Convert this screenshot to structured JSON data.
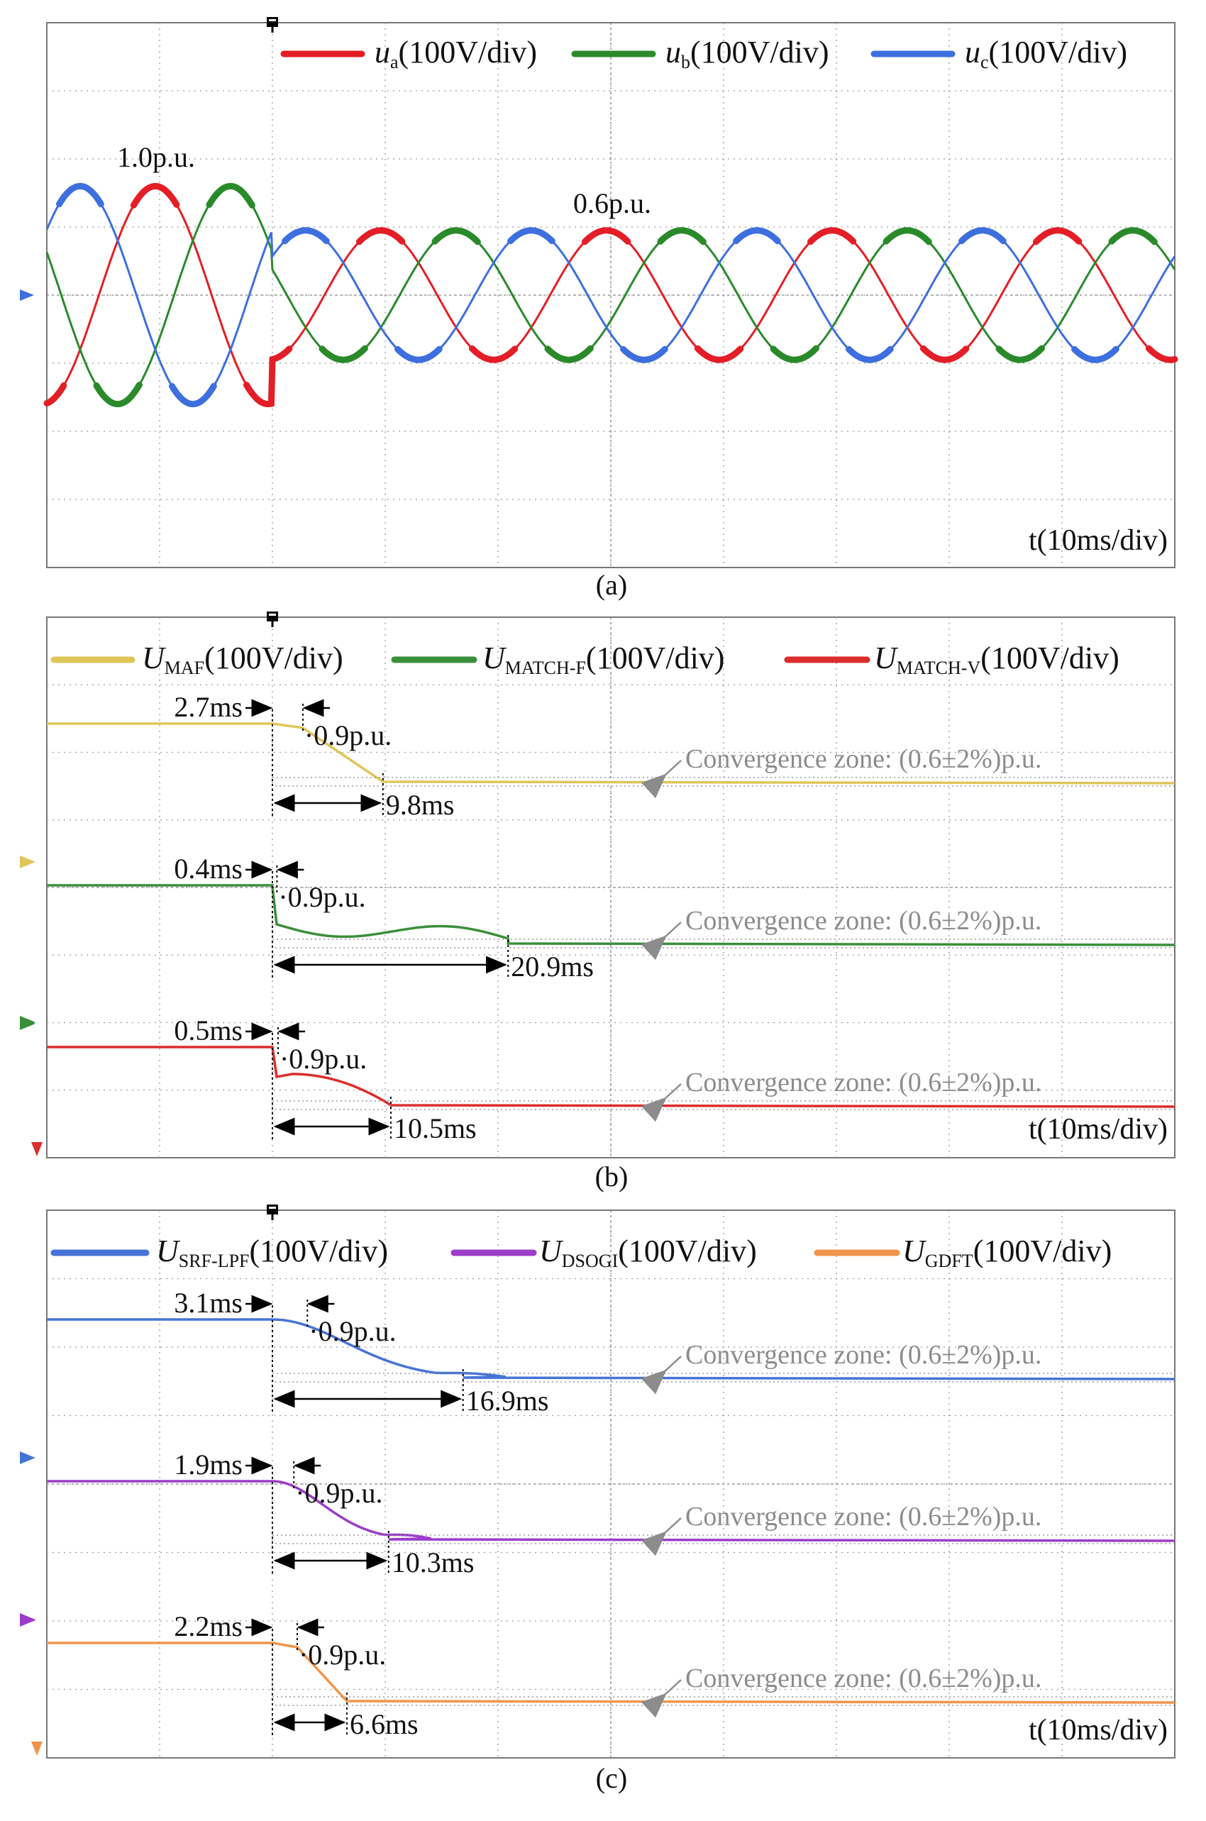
{
  "colors": {
    "ua": "#e41e26",
    "ub": "#2a8a2a",
    "uc": "#3d6fde",
    "maf": "#e0c558",
    "match_f": "#3a8f3a",
    "match_v": "#dd2c2c",
    "srf": "#4674d6",
    "dsogi": "#9b3cc9",
    "gdft": "#f0954b",
    "grid": "#9a9a9a",
    "zone_text": "#8c8c8c"
  },
  "chart_data": [
    {
      "panel": "a",
      "type": "line",
      "caption": "(a)",
      "time_axis_label": "t(10ms/div)",
      "x_unit": "div",
      "x_range": [
        0,
        10
      ],
      "y_range": [
        -4,
        4
      ],
      "trigger_x": 2,
      "legend": [
        {
          "key": "ua",
          "sym": "u",
          "sub": "a",
          "rest": "(100V/div)"
        },
        {
          "key": "ub",
          "sym": "u",
          "sub": "b",
          "rest": "(100V/div)"
        },
        {
          "key": "uc",
          "sym": "u",
          "sub": "c",
          "rest": "(100V/div)"
        }
      ],
      "series": [
        {
          "key": "ua",
          "phase_deg": 0
        },
        {
          "key": "ub",
          "phase_deg": -120
        },
        {
          "key": "uc",
          "phase_deg": 120
        }
      ],
      "wave": {
        "period_div": 2,
        "amp_before_div": 1.6,
        "amp_after_div": 0.95
      },
      "annotations": {
        "before": "1.0p.u.",
        "after": "0.6p.u."
      }
    },
    {
      "panel": "b",
      "type": "line",
      "caption": "(b)",
      "time_axis_label": "t(10ms/div)",
      "x_unit": "div",
      "x_range": [
        0,
        10
      ],
      "trigger_x": 2,
      "legend": [
        {
          "key": "maf",
          "sym": "U",
          "sub": "MAF",
          "rest": "(100V/div)"
        },
        {
          "key": "match_f",
          "sym": "U",
          "sub": "MATCH-F",
          "rest": "(100V/div)"
        },
        {
          "key": "match_v",
          "sym": "U",
          "sub": "MATCH-V",
          "rest": "(100V/div)"
        }
      ],
      "series": [
        {
          "key": "maf",
          "delay_label": "2.7ms",
          "delay_ms": 2.7,
          "level_label": "0.9p.u.",
          "settle_label": "9.8ms",
          "settle_ms": 9.8,
          "zone_label": "Convergence zone: (0.6±2%)p.u.",
          "shape": "ramp"
        },
        {
          "key": "match_f",
          "delay_label": "0.4ms",
          "delay_ms": 0.4,
          "level_label": "0.9p.u.",
          "settle_label": "20.9ms",
          "settle_ms": 20.9,
          "zone_label": "Convergence zone: (0.6±2%)p.u.",
          "shape": "osc"
        },
        {
          "key": "match_v",
          "delay_label": "0.5ms",
          "delay_ms": 0.5,
          "level_label": "0.9p.u.",
          "settle_label": "10.5ms",
          "settle_ms": 10.5,
          "zone_label": "Convergence zone: (0.6±2%)p.u.",
          "shape": "bump"
        }
      ]
    },
    {
      "panel": "c",
      "type": "line",
      "caption": "(c)",
      "time_axis_label": "t(10ms/div)",
      "x_unit": "div",
      "x_range": [
        0,
        10
      ],
      "trigger_x": 2,
      "legend": [
        {
          "key": "srf",
          "sym": "U",
          "sub": "SRF-LPF",
          "rest": "(100V/div)"
        },
        {
          "key": "dsogi",
          "sym": "U",
          "sub": "DSOGI",
          "rest": "(100V/div)"
        },
        {
          "key": "gdft",
          "sym": "U",
          "sub": "GDFT",
          "rest": "(100V/div)"
        }
      ],
      "series": [
        {
          "key": "srf",
          "delay_label": "3.1ms",
          "delay_ms": 3.1,
          "level_label": "0.9p.u.",
          "settle_label": "16.9ms",
          "settle_ms": 16.9,
          "zone_label": "Convergence zone: (0.6±2%)p.u.",
          "shape": "smooth"
        },
        {
          "key": "dsogi",
          "delay_label": "1.9ms",
          "delay_ms": 1.9,
          "level_label": "0.9p.u.",
          "settle_label": "10.3ms",
          "settle_ms": 10.3,
          "zone_label": "Convergence zone: (0.6±2%)p.u.",
          "shape": "smooth"
        },
        {
          "key": "gdft",
          "delay_label": "2.2ms",
          "delay_ms": 2.2,
          "level_label": "0.9p.u.",
          "settle_label": "6.6ms",
          "settle_ms": 6.6,
          "zone_label": "Convergence zone: (0.6±2%)p.u.",
          "shape": "ramp"
        }
      ]
    }
  ]
}
